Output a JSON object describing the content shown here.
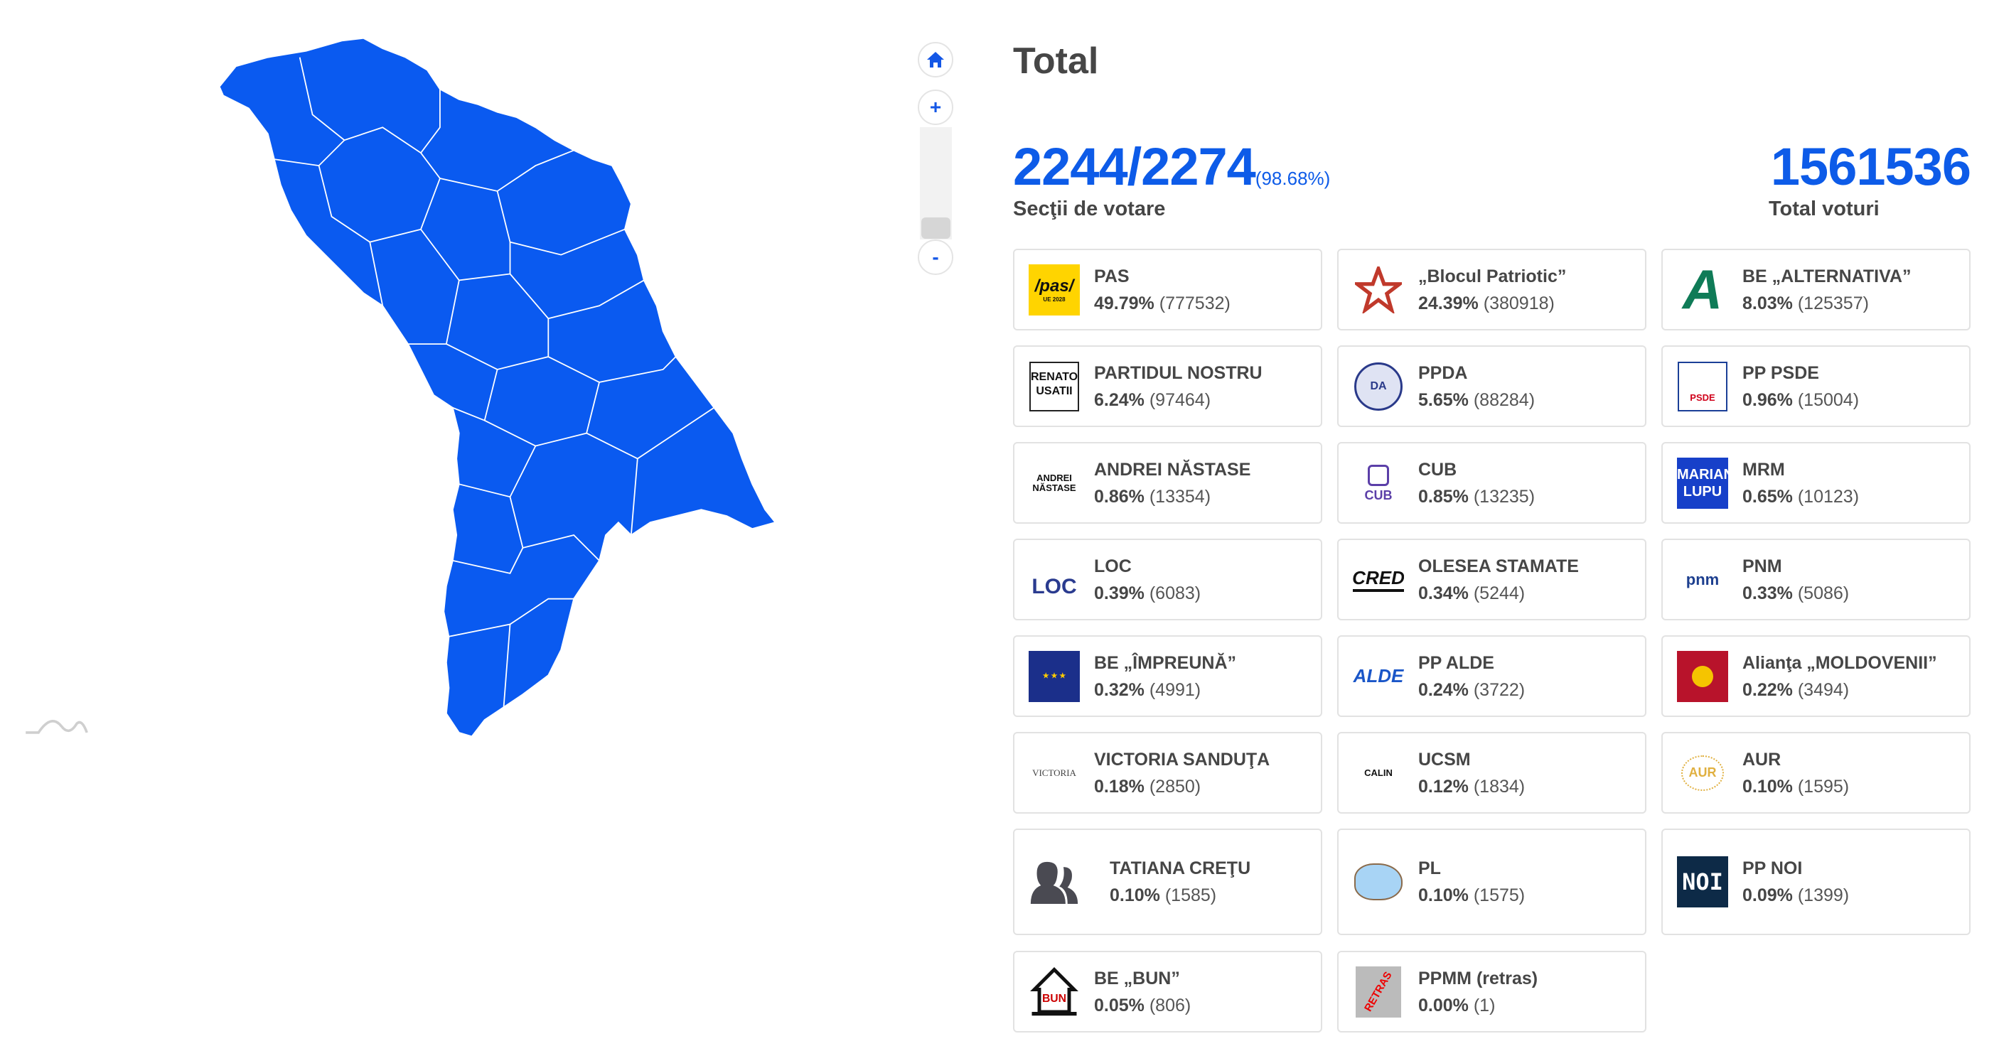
{
  "controls": {
    "home": "home",
    "zoom_in": "+",
    "zoom_out": "-",
    "zoom_level": 0.0
  },
  "title": "Total",
  "stats": {
    "stations": "2244/2274",
    "stations_pct": "(98.68%)",
    "stations_label": "Secţii de votare",
    "votes": "1561536",
    "votes_label": "Total voturi"
  },
  "colors": {
    "accent": "#0d5be8",
    "map": "#0a5af0"
  },
  "parties": [
    {
      "name": "PAS",
      "pct": "49.79%",
      "votes": "(777532)",
      "logo": "pas",
      "logo_text": "/pas/",
      "logo_sub": "UE 2028"
    },
    {
      "name": "„Blocul Patriotic”",
      "pct": "24.39%",
      "votes": "(380918)",
      "logo": "star"
    },
    {
      "name": "BE „ALTERNATIVA”",
      "pct": "8.03%",
      "votes": "(125357)",
      "logo": "alt",
      "logo_text": "A"
    },
    {
      "name": "PARTIDUL NOSTRU",
      "pct": "6.24%",
      "votes": "(97464)",
      "logo": "renato",
      "logo_text": "RENATO USATII"
    },
    {
      "name": "PPDA",
      "pct": "5.65%",
      "votes": "(88284)",
      "logo": "ppda",
      "logo_text": "DA"
    },
    {
      "name": "PP PSDE",
      "pct": "0.96%",
      "votes": "(15004)",
      "logo": "psde",
      "logo_text": "PSDE"
    },
    {
      "name": "ANDREI NĂSTASE",
      "pct": "0.86%",
      "votes": "(13354)",
      "logo": "plain",
      "logo_text": "ANDREI NĂSTASE"
    },
    {
      "name": "CUB",
      "pct": "0.85%",
      "votes": "(13235)",
      "logo": "cub",
      "logo_text": "CUB"
    },
    {
      "name": "MRM",
      "pct": "0.65%",
      "votes": "(10123)",
      "logo": "lupu",
      "logo_text": "MARIAN LUPU"
    },
    {
      "name": "LOC",
      "pct": "0.39%",
      "votes": "(6083)",
      "logo": "loc",
      "logo_text": "LOC"
    },
    {
      "name": "OLESEA STAMATE",
      "pct": "0.34%",
      "votes": "(5244)",
      "logo": "cred",
      "logo_text": "CRED"
    },
    {
      "name": "PNM",
      "pct": "0.33%",
      "votes": "(5086)",
      "logo": "pnm",
      "logo_text": "pnm"
    },
    {
      "name": "BE „ÎMPREUNĂ”",
      "pct": "0.32%",
      "votes": "(4991)",
      "logo": "eu"
    },
    {
      "name": "PP ALDE",
      "pct": "0.24%",
      "votes": "(3722)",
      "logo": "alde",
      "logo_text": "ALDE"
    },
    {
      "name": "Alianţa „MOLDOVENII”",
      "pct": "0.22%",
      "votes": "(3494)",
      "logo": "sun"
    },
    {
      "name": "VICTORIA SANDUŢA",
      "pct": "0.18%",
      "votes": "(2850)",
      "logo": "victoria",
      "logo_text": "VICTORIA"
    },
    {
      "name": "UCSM",
      "pct": "0.12%",
      "votes": "(1834)",
      "logo": "plain",
      "logo_text": "CALIN"
    },
    {
      "name": "AUR",
      "pct": "0.10%",
      "votes": "(1595)",
      "logo": "aur",
      "logo_text": "AUR"
    },
    {
      "name": "TATIANA CREŢU",
      "pct": "0.10%",
      "votes": "(1585)",
      "logo": "person"
    },
    {
      "name": "PL",
      "pct": "0.10%",
      "votes": "(1575)",
      "logo": "pl"
    },
    {
      "name": "PP NOI",
      "pct": "0.09%",
      "votes": "(1399)",
      "logo": "noi",
      "logo_text": "NOI"
    },
    {
      "name": "BE „BUN”",
      "pct": "0.05%",
      "votes": "(806)",
      "logo": "bun",
      "logo_text": "BUN"
    },
    {
      "name": "PPMM (retras)",
      "pct": "0.00%",
      "votes": "(1)",
      "logo": "ppmm",
      "logo_text": "RETRAS"
    }
  ]
}
